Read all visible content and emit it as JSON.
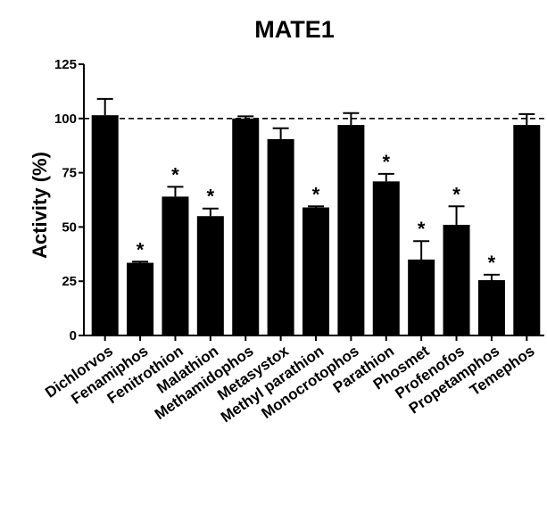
{
  "chart_data": {
    "type": "bar",
    "title": "MATE1",
    "xlabel": "",
    "ylabel": "Activity (%)",
    "ylim": [
      0,
      125
    ],
    "yticks": [
      0,
      25,
      50,
      75,
      100,
      125
    ],
    "reference_line": 100,
    "bar_color": "#000000",
    "categories": [
      "Dichlorvos",
      "Fenamiphos",
      "Fenitrothion",
      "Malathion",
      "Methamidophos",
      "Metasystox",
      "Methyl parathion",
      "Monocrotophos",
      "Parathion",
      "Phosmet",
      "Profenofos",
      "Propetamphos",
      "Temephos"
    ],
    "values": [
      101.5,
      33.5,
      64,
      55,
      100,
      90.5,
      59,
      97,
      71,
      35,
      51,
      25.5,
      97
    ],
    "errors": [
      7.5,
      0.5,
      4.5,
      3.5,
      1,
      5,
      0.5,
      5.5,
      3.5,
      8.5,
      8.5,
      2.5,
      5
    ],
    "significance": [
      "",
      "*",
      "*",
      "*",
      "",
      "",
      "*",
      "",
      "*",
      "*",
      "*",
      "*",
      ""
    ]
  }
}
